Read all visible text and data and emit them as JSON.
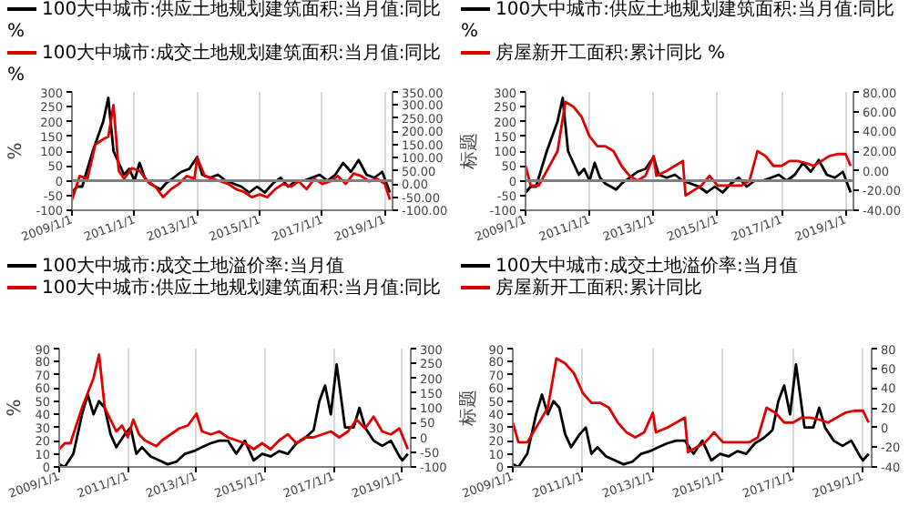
{
  "chart_data": [
    {
      "type": "line",
      "ylabel": "%",
      "legend": "top",
      "grid": "x",
      "xlim": [
        "2009-01-01",
        "2019-04-01"
      ],
      "xticks": [
        {
          "value": "2009-01-01",
          "label": "2009/1/1"
        },
        {
          "value": "2011-01-01",
          "label": "2011/1/1"
        },
        {
          "value": "2013-01-01",
          "label": "2013/1/1"
        },
        {
          "value": "2015-01-01",
          "label": "2015/1/1"
        },
        {
          "value": "2017-01-01",
          "label": "2017/1/1"
        },
        {
          "value": "2019-01-01",
          "label": "2019/1/1"
        }
      ],
      "ylim": [
        -100,
        300
      ],
      "yticks": [
        -100,
        -50,
        0,
        50,
        100,
        150,
        200,
        250,
        300
      ],
      "y2lim": [
        -100,
        350
      ],
      "y2ticks": [
        {
          "value": -100,
          "label": "-100.00"
        },
        {
          "value": -50,
          "label": "-50.00"
        },
        {
          "value": 0,
          "label": "0.00"
        },
        {
          "value": 50,
          "label": "50.00"
        },
        {
          "value": 100,
          "label": "100.00"
        },
        {
          "value": 150,
          "label": "150.00"
        },
        {
          "value": 200,
          "label": "200.00"
        },
        {
          "value": 250,
          "label": "250.00"
        },
        {
          "value": 300,
          "label": "300.00"
        },
        {
          "value": 350,
          "label": "350.00"
        }
      ],
      "ref_lines": [
        {
          "axis": "y",
          "value": 0,
          "color": "#808080"
        }
      ],
      "series": [
        {
          "name": "100大中城市:供应土地规划建筑面积:当月值:同比 %",
          "color": "#000000",
          "x": [
            "2009-01",
            "2009-03",
            "2009-05",
            "2009-07",
            "2009-09",
            "2009-11",
            "2010-01",
            "2010-03",
            "2010-05",
            "2010-07",
            "2010-09",
            "2010-11",
            "2011-01",
            "2011-03",
            "2011-05",
            "2011-07",
            "2011-09",
            "2011-11",
            "2012-01",
            "2012-04",
            "2012-07",
            "2012-10",
            "2013-01",
            "2013-03",
            "2013-06",
            "2013-09",
            "2013-12",
            "2014-03",
            "2014-06",
            "2014-09",
            "2014-12",
            "2015-03",
            "2015-06",
            "2015-09",
            "2015-12",
            "2016-03",
            "2016-06",
            "2016-09",
            "2016-12",
            "2017-03",
            "2017-06",
            "2017-09",
            "2017-12",
            "2018-03",
            "2018-06",
            "2018-09",
            "2018-12",
            "2019-03"
          ],
          "values": [
            -40,
            -20,
            -20,
            40,
            100,
            150,
            200,
            280,
            100,
            60,
            20,
            40,
            0,
            60,
            10,
            -10,
            -20,
            -30,
            -10,
            10,
            30,
            40,
            80,
            20,
            10,
            20,
            0,
            -10,
            -20,
            -40,
            -20,
            -40,
            -10,
            10,
            -20,
            0,
            0,
            10,
            20,
            0,
            20,
            60,
            30,
            70,
            20,
            10,
            30,
            -40
          ]
        },
        {
          "name": "100大中城市:成交土地规划建筑面积:当月值:同比 %",
          "color": "#e00000",
          "axis": "y2",
          "x": [
            "2009-01",
            "2009-04",
            "2009-07",
            "2009-10",
            "2010-01",
            "2010-03",
            "2010-05",
            "2010-07",
            "2010-09",
            "2010-12",
            "2011-03",
            "2011-06",
            "2011-09",
            "2011-12",
            "2012-03",
            "2012-06",
            "2012-09",
            "2012-12",
            "2013-01",
            "2013-04",
            "2013-07",
            "2013-10",
            "2014-01",
            "2014-04",
            "2014-07",
            "2014-10",
            "2015-01",
            "2015-04",
            "2015-07",
            "2015-10",
            "2016-01",
            "2016-04",
            "2016-07",
            "2016-10",
            "2017-01",
            "2017-04",
            "2017-07",
            "2017-10",
            "2018-01",
            "2018-04",
            "2018-07",
            "2018-10",
            "2019-01",
            "2019-03"
          ],
          "values": [
            -60,
            30,
            20,
            150,
            170,
            180,
            300,
            50,
            20,
            60,
            50,
            10,
            -10,
            -50,
            -20,
            0,
            30,
            20,
            100,
            30,
            20,
            10,
            0,
            -20,
            -30,
            -50,
            -40,
            -50,
            -20,
            0,
            -10,
            10,
            -20,
            20,
            0,
            10,
            30,
            0,
            40,
            30,
            10,
            20,
            0,
            -60
          ]
        }
      ]
    },
    {
      "type": "line",
      "ylabel": "标题",
      "legend": "top",
      "grid": "x",
      "xlim": [
        "2009-01-01",
        "2019-04-01"
      ],
      "xticks": [
        {
          "value": "2009-01-01",
          "label": "2009/1/1"
        },
        {
          "value": "2011-01-01",
          "label": "2011/1/1"
        },
        {
          "value": "2013-01-01",
          "label": "2013/1/1"
        },
        {
          "value": "2015-01-01",
          "label": "2015/1/1"
        },
        {
          "value": "2017-01-01",
          "label": "2017/1/1"
        },
        {
          "value": "2019-01-01",
          "label": "2019/1/1"
        }
      ],
      "ylim": [
        -100,
        300
      ],
      "yticks": [
        -100,
        -50,
        0,
        50,
        100,
        150,
        200,
        250,
        300
      ],
      "y2lim": [
        -40,
        80
      ],
      "y2ticks": [
        {
          "value": -40,
          "label": "-40.00"
        },
        {
          "value": -20,
          "label": "-20.00"
        },
        {
          "value": 0,
          "label": "0.00"
        },
        {
          "value": 20,
          "label": "20.00"
        },
        {
          "value": 40,
          "label": "40.00"
        },
        {
          "value": 60,
          "label": "60.00"
        },
        {
          "value": 80,
          "label": "80.00"
        }
      ],
      "ref_lines": [
        {
          "axis": "y",
          "value": 0,
          "color": "#808080"
        }
      ],
      "series": [
        {
          "name": "100大中城市:供应土地规划建筑面积:当月值:同比 %",
          "color": "#000000",
          "x": [
            "2009-01",
            "2009-03",
            "2009-05",
            "2009-07",
            "2009-09",
            "2009-11",
            "2010-01",
            "2010-03",
            "2010-05",
            "2010-07",
            "2010-09",
            "2010-11",
            "2011-01",
            "2011-03",
            "2011-05",
            "2011-07",
            "2011-09",
            "2011-11",
            "2012-01",
            "2012-04",
            "2012-07",
            "2012-10",
            "2013-01",
            "2013-03",
            "2013-06",
            "2013-09",
            "2013-12",
            "2014-03",
            "2014-06",
            "2014-09",
            "2014-12",
            "2015-03",
            "2015-06",
            "2015-09",
            "2015-12",
            "2016-03",
            "2016-06",
            "2016-09",
            "2016-12",
            "2017-03",
            "2017-06",
            "2017-09",
            "2017-12",
            "2018-03",
            "2018-06",
            "2018-09",
            "2018-12",
            "2019-03"
          ],
          "values": [
            -40,
            -20,
            -20,
            40,
            100,
            150,
            200,
            280,
            100,
            60,
            20,
            40,
            0,
            60,
            10,
            -10,
            -20,
            -30,
            -10,
            10,
            30,
            40,
            80,
            20,
            10,
            20,
            0,
            -10,
            -20,
            -40,
            -20,
            -40,
            -10,
            10,
            -20,
            0,
            0,
            10,
            20,
            0,
            20,
            60,
            30,
            70,
            20,
            10,
            30,
            -40
          ]
        },
        {
          "name": "房屋新开工面积:累计同比 %",
          "color": "#e00000",
          "axis": "y2",
          "x": [
            "2009-01",
            "2009-03",
            "2009-06",
            "2009-09",
            "2010-01",
            "2010-04",
            "2010-07",
            "2010-10",
            "2011-01",
            "2011-04",
            "2011-07",
            "2011-10",
            "2012-01",
            "2012-04",
            "2012-07",
            "2012-10",
            "2013-01",
            "2013-02",
            "2013-06",
            "2013-09",
            "2013-12",
            "2014-01",
            "2014-04",
            "2014-07",
            "2014-10",
            "2015-01",
            "2015-04",
            "2015-07",
            "2015-10",
            "2016-01",
            "2016-04",
            "2016-07",
            "2016-10",
            "2017-01",
            "2017-04",
            "2017-07",
            "2017-10",
            "2018-01",
            "2018-04",
            "2018-07",
            "2018-10",
            "2019-01",
            "2019-03"
          ],
          "values": [
            5,
            -15,
            -15,
            0,
            20,
            70,
            65,
            55,
            35,
            25,
            25,
            20,
            5,
            -5,
            -10,
            -5,
            15,
            -5,
            0,
            5,
            10,
            -25,
            -20,
            -15,
            -5,
            -15,
            -15,
            -15,
            -15,
            -10,
            20,
            15,
            5,
            5,
            10,
            10,
            8,
            5,
            10,
            15,
            17,
            17,
            5
          ]
        }
      ]
    },
    {
      "type": "line",
      "ylabel": "%",
      "legend": "top",
      "grid": "x",
      "xlim": [
        "2009-01-01",
        "2019-04-01"
      ],
      "xticks": [
        {
          "value": "2009-01-01",
          "label": "2009/1/1"
        },
        {
          "value": "2011-01-01",
          "label": "2011/1/1"
        },
        {
          "value": "2013-01-01",
          "label": "2013/1/1"
        },
        {
          "value": "2015-01-01",
          "label": "2015/1/1"
        },
        {
          "value": "2017-01-01",
          "label": "2017/1/1"
        },
        {
          "value": "2019-01-01",
          "label": "2019/1/1"
        }
      ],
      "ylim": [
        0,
        90
      ],
      "yticks": [
        0,
        10,
        20,
        30,
        40,
        50,
        60,
        70,
        80,
        90
      ],
      "y2lim": [
        -100,
        300
      ],
      "y2ticks": [
        -100,
        -50,
        0,
        50,
        100,
        150,
        200,
        250,
        300
      ],
      "series": [
        {
          "name": "100大中城市:成交土地溢价率:当月值",
          "color": "#000000",
          "x": [
            "2009-01",
            "2009-03",
            "2009-06",
            "2009-09",
            "2009-11",
            "2010-01",
            "2010-03",
            "2010-05",
            "2010-07",
            "2010-09",
            "2010-12",
            "2011-02",
            "2011-04",
            "2011-06",
            "2011-09",
            "2011-12",
            "2012-03",
            "2012-06",
            "2012-09",
            "2012-12",
            "2013-03",
            "2013-06",
            "2013-09",
            "2013-12",
            "2014-03",
            "2014-06",
            "2014-09",
            "2014-12",
            "2015-03",
            "2015-06",
            "2015-09",
            "2015-12",
            "2016-03",
            "2016-06",
            "2016-08",
            "2016-10",
            "2016-12",
            "2017-02",
            "2017-05",
            "2017-08",
            "2017-10",
            "2017-12",
            "2018-03",
            "2018-06",
            "2018-09",
            "2018-12",
            "2019-01",
            "2019-03"
          ],
          "values": [
            2,
            0,
            10,
            40,
            55,
            40,
            50,
            45,
            25,
            15,
            25,
            30,
            10,
            15,
            8,
            5,
            2,
            4,
            10,
            12,
            15,
            18,
            20,
            20,
            10,
            20,
            5,
            10,
            8,
            12,
            10,
            18,
            22,
            28,
            50,
            62,
            40,
            78,
            30,
            30,
            45,
            30,
            20,
            16,
            20,
            8,
            5,
            10
          ]
        },
        {
          "name": "100大中城市:供应土地规划建筑面积:当月值:同比",
          "color": "#e00000",
          "axis": "y2",
          "x": [
            "2009-01",
            "2009-03",
            "2009-05",
            "2009-07",
            "2009-09",
            "2009-11",
            "2010-01",
            "2010-03",
            "2010-05",
            "2010-07",
            "2010-09",
            "2010-11",
            "2011-01",
            "2011-03",
            "2011-05",
            "2011-07",
            "2011-09",
            "2011-11",
            "2012-01",
            "2012-04",
            "2012-07",
            "2012-10",
            "2013-01",
            "2013-03",
            "2013-06",
            "2013-09",
            "2013-12",
            "2014-03",
            "2014-06",
            "2014-09",
            "2014-12",
            "2015-03",
            "2015-06",
            "2015-09",
            "2015-12",
            "2016-03",
            "2016-06",
            "2016-09",
            "2016-12",
            "2017-03",
            "2017-06",
            "2017-09",
            "2017-12",
            "2018-03",
            "2018-06",
            "2018-09",
            "2018-12",
            "2019-03"
          ],
          "values": [
            -40,
            -20,
            -20,
            40,
            100,
            150,
            200,
            280,
            100,
            60,
            20,
            40,
            0,
            60,
            10,
            -10,
            -20,
            -30,
            -10,
            10,
            30,
            40,
            80,
            20,
            10,
            20,
            0,
            -10,
            -20,
            -40,
            -20,
            -40,
            -10,
            10,
            -20,
            0,
            0,
            10,
            20,
            0,
            20,
            60,
            30,
            70,
            20,
            10,
            30,
            -40
          ]
        }
      ]
    },
    {
      "type": "line",
      "ylabel": "标题",
      "legend": "top",
      "grid": "x",
      "xlim": [
        "2009-01-01",
        "2019-04-01"
      ],
      "xticks": [
        {
          "value": "2009-01-01",
          "label": "2009/1/1"
        },
        {
          "value": "2011-01-01",
          "label": "2011/1/1"
        },
        {
          "value": "2013-01-01",
          "label": "2013/1/1"
        },
        {
          "value": "2015-01-01",
          "label": "2015/1/1"
        },
        {
          "value": "2017-01-01",
          "label": "2017/1/1"
        },
        {
          "value": "2019-01-01",
          "label": "2019/1/1"
        }
      ],
      "ylim": [
        0,
        90
      ],
      "yticks": [
        0,
        10,
        20,
        30,
        40,
        50,
        60,
        70,
        80,
        90
      ],
      "y2lim": [
        -40,
        80
      ],
      "y2ticks": [
        -40,
        -20,
        0,
        20,
        40,
        60,
        80
      ],
      "series": [
        {
          "name": "100大中城市:成交土地溢价率:当月值",
          "color": "#000000",
          "x": [
            "2009-01",
            "2009-03",
            "2009-06",
            "2009-09",
            "2009-11",
            "2010-01",
            "2010-03",
            "2010-05",
            "2010-07",
            "2010-09",
            "2010-12",
            "2011-02",
            "2011-04",
            "2011-06",
            "2011-09",
            "2011-12",
            "2012-03",
            "2012-06",
            "2012-09",
            "2012-12",
            "2013-03",
            "2013-06",
            "2013-09",
            "2013-12",
            "2014-03",
            "2014-06",
            "2014-09",
            "2014-12",
            "2015-03",
            "2015-06",
            "2015-09",
            "2015-12",
            "2016-03",
            "2016-06",
            "2016-08",
            "2016-10",
            "2016-12",
            "2017-02",
            "2017-05",
            "2017-08",
            "2017-10",
            "2017-12",
            "2018-03",
            "2018-06",
            "2018-09",
            "2018-12",
            "2019-01",
            "2019-03"
          ],
          "values": [
            2,
            0,
            10,
            40,
            55,
            40,
            50,
            45,
            25,
            15,
            25,
            30,
            10,
            15,
            8,
            5,
            2,
            4,
            10,
            12,
            15,
            18,
            20,
            20,
            10,
            20,
            5,
            10,
            8,
            12,
            10,
            18,
            22,
            28,
            50,
            62,
            40,
            78,
            30,
            30,
            45,
            30,
            20,
            16,
            20,
            8,
            5,
            10
          ]
        },
        {
          "name": "房屋新开工面积:累计同比",
          "color": "#e00000",
          "axis": "y2",
          "x": [
            "2009-01",
            "2009-03",
            "2009-06",
            "2009-09",
            "2010-01",
            "2010-04",
            "2010-07",
            "2010-10",
            "2011-01",
            "2011-04",
            "2011-07",
            "2011-10",
            "2012-01",
            "2012-04",
            "2012-07",
            "2012-10",
            "2013-01",
            "2013-02",
            "2013-06",
            "2013-09",
            "2013-12",
            "2014-01",
            "2014-04",
            "2014-07",
            "2014-10",
            "2015-01",
            "2015-04",
            "2015-07",
            "2015-10",
            "2016-01",
            "2016-04",
            "2016-07",
            "2016-10",
            "2017-01",
            "2017-04",
            "2017-07",
            "2017-10",
            "2018-01",
            "2018-04",
            "2018-07",
            "2018-10",
            "2019-01",
            "2019-03"
          ],
          "values": [
            5,
            -15,
            -15,
            0,
            20,
            70,
            65,
            55,
            35,
            25,
            25,
            20,
            5,
            -5,
            -10,
            -5,
            15,
            -5,
            0,
            5,
            10,
            -25,
            -20,
            -15,
            -5,
            -15,
            -15,
            -15,
            -15,
            -10,
            20,
            15,
            5,
            5,
            10,
            10,
            8,
            5,
            10,
            15,
            17,
            17,
            5
          ]
        }
      ]
    }
  ]
}
